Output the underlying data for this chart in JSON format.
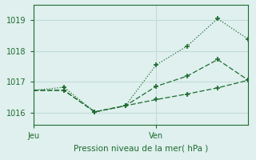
{
  "xlabel": "Pression niveau de la mer( hPa )",
  "bg_color": "#dff0ee",
  "grid_color": "#c2ddd9",
  "line_color": "#1e6b30",
  "ylim": [
    1015.6,
    1019.5
  ],
  "yticks": [
    1016,
    1017,
    1018,
    1019
  ],
  "xlim": [
    0,
    7
  ],
  "xtick_positions": [
    0,
    4
  ],
  "xtick_labels": [
    "Jeu",
    "Ven"
  ],
  "series1_x": [
    0,
    1,
    2,
    3,
    4,
    5,
    6,
    7
  ],
  "series1_y": [
    1016.72,
    1016.82,
    1016.02,
    1016.22,
    1017.55,
    1018.15,
    1019.05,
    1018.38
  ],
  "series2_x": [
    0,
    1,
    2,
    3,
    4,
    5,
    6,
    7
  ],
  "series2_y": [
    1016.72,
    1016.72,
    1016.02,
    1016.22,
    1016.85,
    1017.18,
    1017.72,
    1017.05
  ],
  "series3_x": [
    0,
    1,
    2,
    3,
    4,
    5,
    6,
    7
  ],
  "series3_y": [
    1016.72,
    1016.72,
    1016.02,
    1016.22,
    1016.42,
    1016.6,
    1016.8,
    1017.05
  ],
  "xlabel_fontsize": 7.5,
  "tick_fontsize": 7
}
